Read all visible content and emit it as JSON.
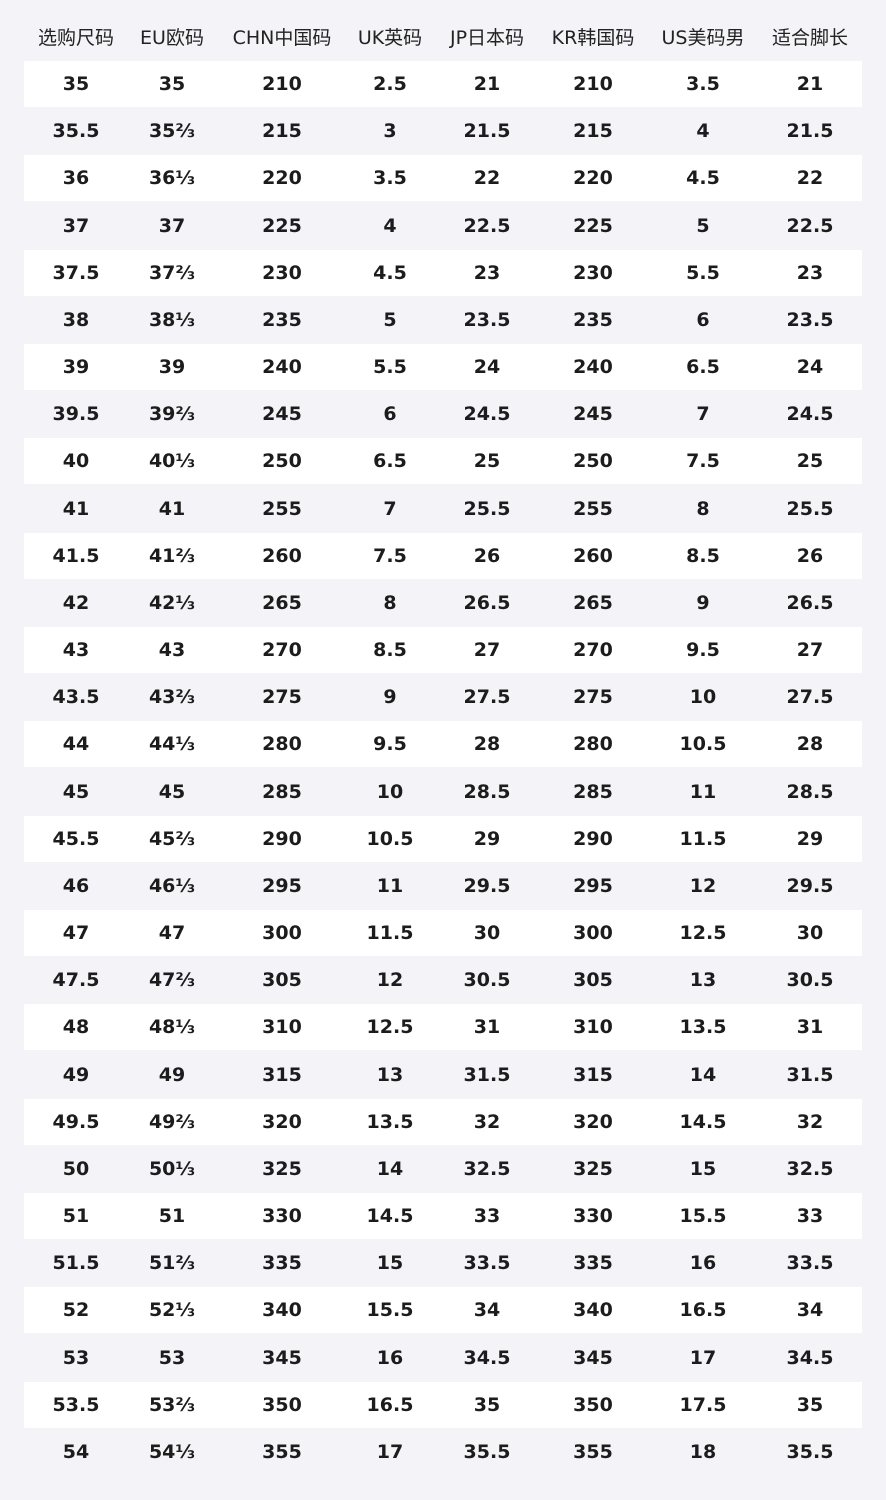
{
  "table": {
    "headers": [
      "选购尺码",
      "EU欧码",
      "CHN中国码",
      "UK英码",
      "JP日本码",
      "KR韩国码",
      "US美码男",
      "适合脚长"
    ],
    "rows": [
      [
        "35",
        "35",
        "210",
        "2.5",
        "21",
        "210",
        "3.5",
        "21"
      ],
      [
        "35.5",
        "35⅔",
        "215",
        "3",
        "21.5",
        "215",
        "4",
        "21.5"
      ],
      [
        "36",
        "36⅓",
        "220",
        "3.5",
        "22",
        "220",
        "4.5",
        "22"
      ],
      [
        "37",
        "37",
        "225",
        "4",
        "22.5",
        "225",
        "5",
        "22.5"
      ],
      [
        "37.5",
        "37⅔",
        "230",
        "4.5",
        "23",
        "230",
        "5.5",
        "23"
      ],
      [
        "38",
        "38⅓",
        "235",
        "5",
        "23.5",
        "235",
        "6",
        "23.5"
      ],
      [
        "39",
        "39",
        "240",
        "5.5",
        "24",
        "240",
        "6.5",
        "24"
      ],
      [
        "39.5",
        "39⅔",
        "245",
        "6",
        "24.5",
        "245",
        "7",
        "24.5"
      ],
      [
        "40",
        "40⅓",
        "250",
        "6.5",
        "25",
        "250",
        "7.5",
        "25"
      ],
      [
        "41",
        "41",
        "255",
        "7",
        "25.5",
        "255",
        "8",
        "25.5"
      ],
      [
        "41.5",
        "41⅔",
        "260",
        "7.5",
        "26",
        "260",
        "8.5",
        "26"
      ],
      [
        "42",
        "42⅓",
        "265",
        "8",
        "26.5",
        "265",
        "9",
        "26.5"
      ],
      [
        "43",
        "43",
        "270",
        "8.5",
        "27",
        "270",
        "9.5",
        "27"
      ],
      [
        "43.5",
        "43⅔",
        "275",
        "9",
        "27.5",
        "275",
        "10",
        "27.5"
      ],
      [
        "44",
        "44⅓",
        "280",
        "9.5",
        "28",
        "280",
        "10.5",
        "28"
      ],
      [
        "45",
        "45",
        "285",
        "10",
        "28.5",
        "285",
        "11",
        "28.5"
      ],
      [
        "45.5",
        "45⅔",
        "290",
        "10.5",
        "29",
        "290",
        "11.5",
        "29"
      ],
      [
        "46",
        "46⅓",
        "295",
        "11",
        "29.5",
        "295",
        "12",
        "29.5"
      ],
      [
        "47",
        "47",
        "300",
        "11.5",
        "30",
        "300",
        "12.5",
        "30"
      ],
      [
        "47.5",
        "47⅔",
        "305",
        "12",
        "30.5",
        "305",
        "13",
        "30.5"
      ],
      [
        "48",
        "48⅓",
        "310",
        "12.5",
        "31",
        "310",
        "13.5",
        "31"
      ],
      [
        "49",
        "49",
        "315",
        "13",
        "31.5",
        "315",
        "14",
        "31.5"
      ],
      [
        "49.5",
        "49⅔",
        "320",
        "13.5",
        "32",
        "320",
        "14.5",
        "32"
      ],
      [
        "50",
        "50⅓",
        "325",
        "14",
        "32.5",
        "325",
        "15",
        "32.5"
      ],
      [
        "51",
        "51",
        "330",
        "14.5",
        "33",
        "330",
        "15.5",
        "33"
      ],
      [
        "51.5",
        "51⅔",
        "335",
        "15",
        "33.5",
        "335",
        "16",
        "33.5"
      ],
      [
        "52",
        "52⅓",
        "340",
        "15.5",
        "34",
        "340",
        "16.5",
        "34"
      ],
      [
        "53",
        "53",
        "345",
        "16",
        "34.5",
        "345",
        "17",
        "34.5"
      ],
      [
        "53.5",
        "53⅔",
        "350",
        "16.5",
        "35",
        "350",
        "17.5",
        "35"
      ],
      [
        "54",
        "54⅓",
        "355",
        "17",
        "35.5",
        "355",
        "18",
        "35.5"
      ]
    ]
  },
  "colors": {
    "background": "#f3f3f8",
    "row_alt": "#ffffff",
    "text": "#1c1c1c"
  }
}
